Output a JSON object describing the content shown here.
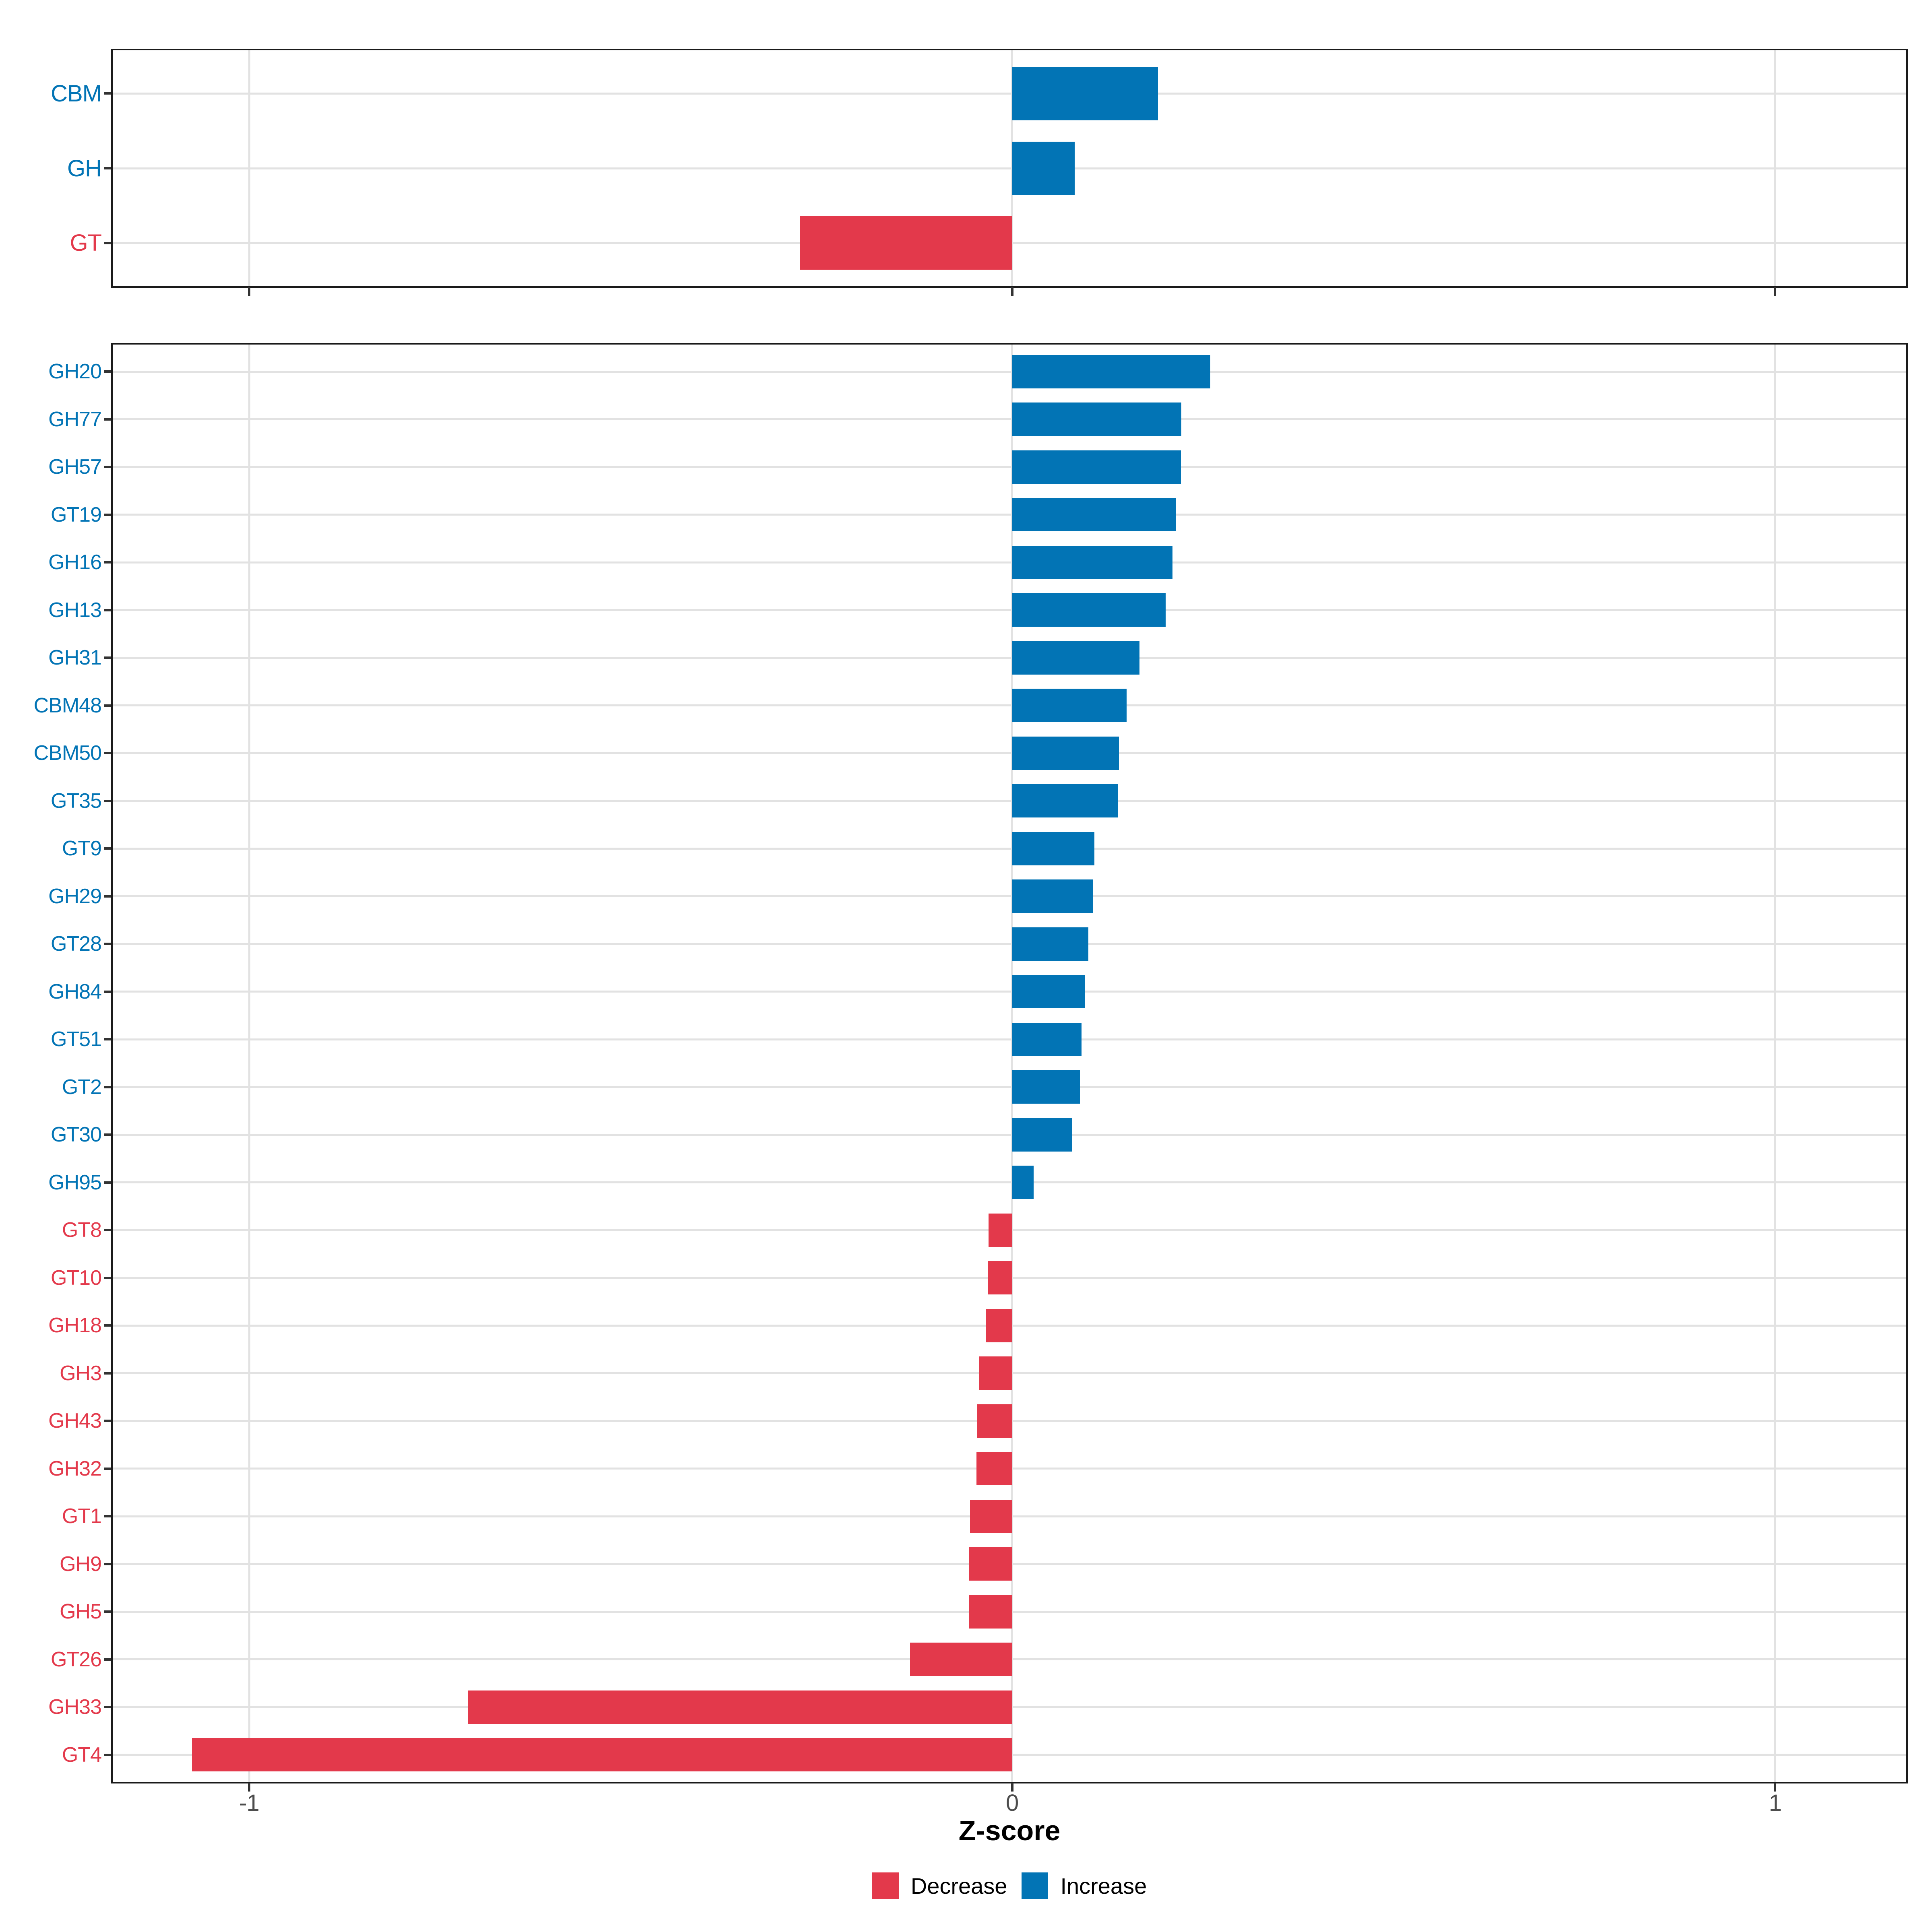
{
  "chart_data": {
    "type": "bar",
    "orientation": "horizontal",
    "xlabel": "Z-score",
    "x_ticks": [
      -1,
      0,
      1
    ],
    "xlim": [
      -1.181,
      1.174
    ],
    "grid": true,
    "legend_position": "bottom",
    "panels": [
      {
        "categories": [
          "CBM",
          "GH",
          "GT"
        ],
        "values": [
          0.191,
          0.082,
          -0.278
        ]
      },
      {
        "categories": [
          "GH20",
          "GH77",
          "GH57",
          "GT19",
          "GH16",
          "GH13",
          "GH31",
          "CBM48",
          "CBM50",
          "GT35",
          "GT9",
          "GH29",
          "GT28",
          "GH84",
          "GT51",
          "GT2",
          "GT30",
          "GH95",
          "GT8",
          "GT10",
          "GH18",
          "GH3",
          "GH43",
          "GH32",
          "GT1",
          "GH9",
          "GH5",
          "GT26",
          "GH33",
          "GT4"
        ],
        "values": [
          0.26,
          0.222,
          0.221,
          0.215,
          0.21,
          0.201,
          0.167,
          0.15,
          0.14,
          0.139,
          0.108,
          0.106,
          0.1,
          0.095,
          0.091,
          0.089,
          0.079,
          0.028,
          -0.031,
          -0.032,
          -0.034,
          -0.043,
          -0.046,
          -0.047,
          -0.055,
          -0.056,
          -0.057,
          -0.134,
          -0.713,
          -1.075
        ]
      }
    ],
    "legend": [
      {
        "label": "Decrease",
        "color": "#E3394B"
      },
      {
        "label": "Increase",
        "color": "#0274B5"
      }
    ]
  },
  "colors": {
    "increase": "#0274B5",
    "decrease": "#E3394B",
    "grid": "#E2E2E2",
    "panel_border": "#1A1A1A",
    "tick_mark": "#333333",
    "tick_label": "#4D4D4D",
    "axis_title": "#000000",
    "background": "#FFFFFF"
  }
}
